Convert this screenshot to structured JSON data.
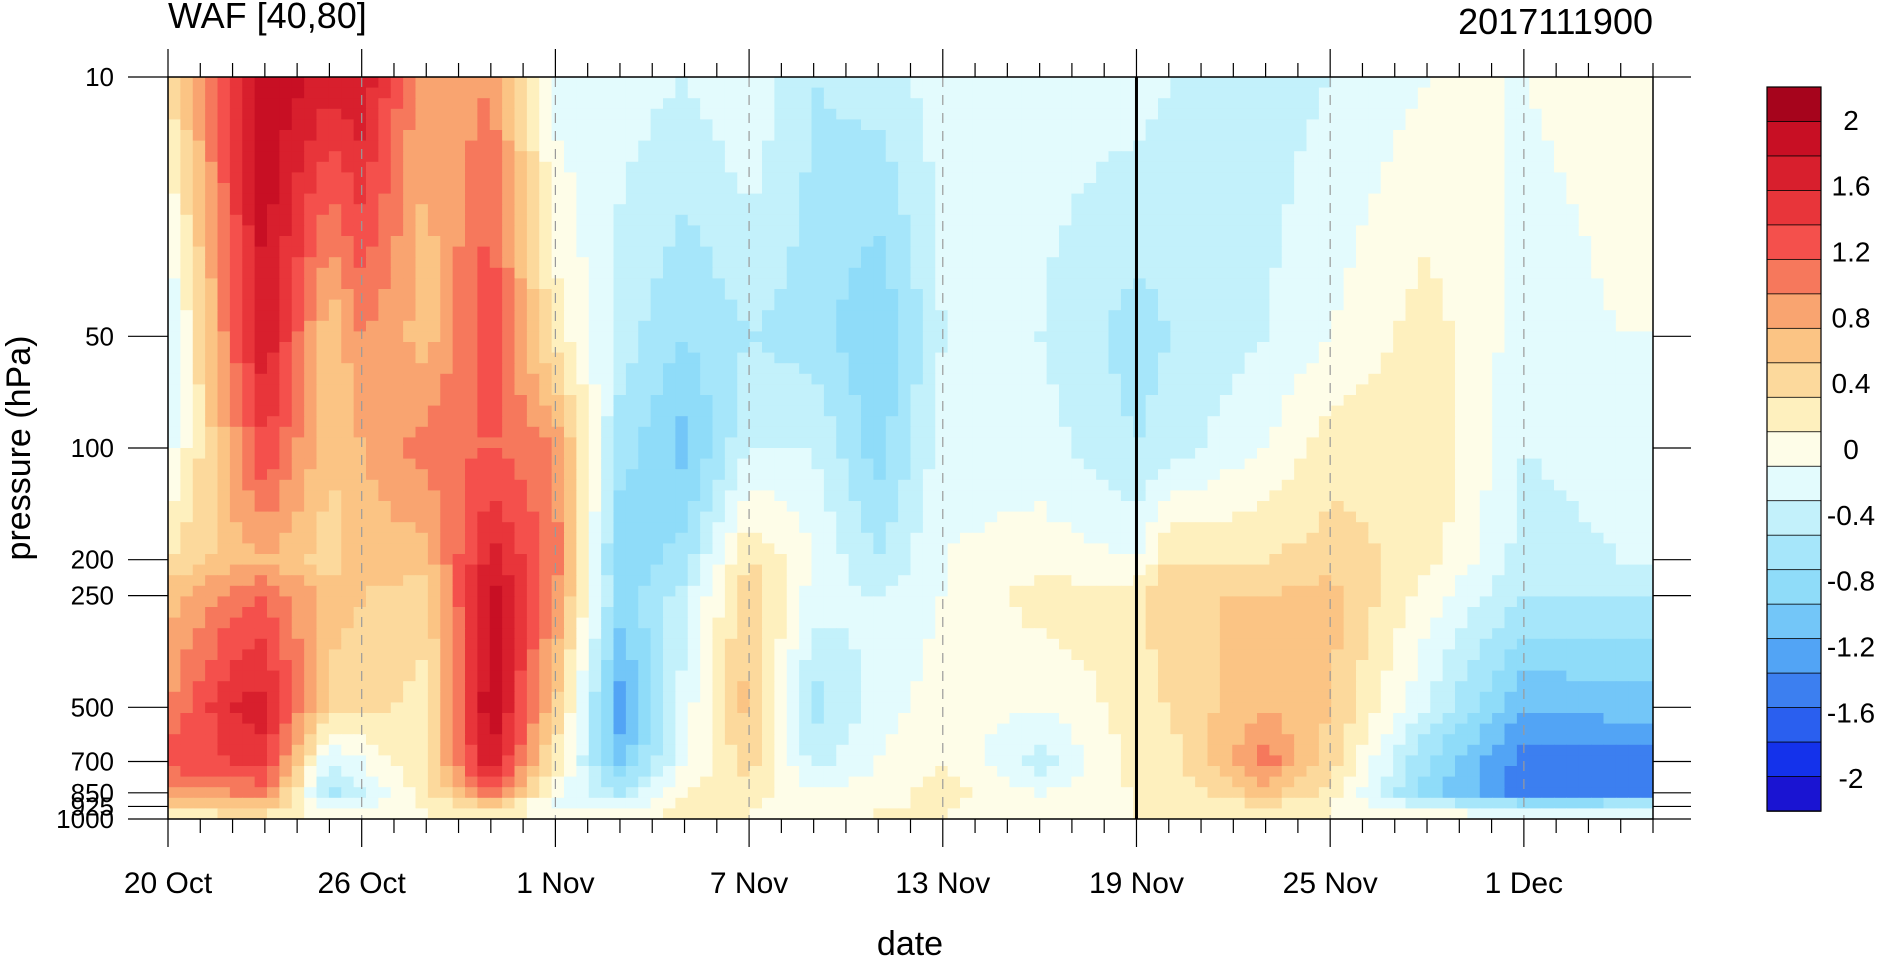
{
  "chart_data": {
    "type": "heatmap",
    "title_left": "WAF [40,80]",
    "title_right": "2017111900",
    "xlabel": "date",
    "ylabel": "pressure (hPa)",
    "x_tick_labels": [
      "20 Oct",
      "26 Oct",
      "1 Nov",
      "7 Nov",
      "13 Nov",
      "19 Nov",
      "25 Nov",
      "1 Dec"
    ],
    "y_tick_labels": [
      "10",
      "50",
      "100",
      "200",
      "250",
      "500",
      "700",
      "850",
      "925",
      "1000"
    ],
    "y_scale": "log",
    "x_range": [
      "2017-10-20",
      "2017-12-05"
    ],
    "y_range": [
      1000,
      10
    ],
    "levels": [
      -2.2,
      -2.0,
      -1.8,
      -1.6,
      -1.4,
      -1.2,
      -1.0,
      -0.8,
      -0.6,
      -0.4,
      -0.2,
      0.0,
      0.2,
      0.4,
      0.6,
      0.8,
      1.0,
      1.2,
      1.4,
      1.6,
      1.8,
      2.0,
      2.2
    ],
    "colorbar_labels": [
      "2",
      "1.6",
      "1.2",
      "0.8",
      "0.4",
      "0",
      "-0.4",
      "-0.8",
      "-1.2",
      "-1.6",
      "-2"
    ],
    "colors": [
      "#1a14d2",
      "#1432eb",
      "#2a5fef",
      "#3c7ff0",
      "#52a4f5",
      "#73c6f8",
      "#8fdcf9",
      "#a6e6fa",
      "#c3f1fb",
      "#e3fbfd",
      "#fefde8",
      "#fef0be",
      "#fcd99c",
      "#fbc484",
      "#f9a470",
      "#f6785c",
      "#f4504c",
      "#e8353a",
      "#d81f2d",
      "#c80f24",
      "#a6041c"
    ],
    "analysis_date_marker": "19 Nov",
    "dashed_gridlines": true,
    "colorbar_position": "right",
    "profiles": [
      {
        "date": "20 Oct",
        "values": [
          0.2,
          -0.5,
          -0.3,
          0.2,
          0.5,
          0.8,
          1.1,
          0.7,
          0.3,
          0.0
        ]
      },
      {
        "date": "22 Oct",
        "values": [
          1.3,
          1.0,
          0.7,
          0.5,
          0.9,
          1.4,
          1.2,
          0.8,
          0.4,
          0.1
        ]
      },
      {
        "date": "23 Oct",
        "values": [
          1.8,
          1.6,
          1.2,
          0.6,
          1.0,
          1.5,
          1.3,
          0.9,
          0.4,
          0.1
        ]
      },
      {
        "date": "25 Oct",
        "values": [
          1.5,
          0.4,
          0.4,
          0.3,
          0.5,
          0.3,
          -0.4,
          -0.7,
          -0.3,
          0.0
        ]
      },
      {
        "date": "26 Oct",
        "values": [
          1.6,
          0.8,
          0.6,
          0.5,
          0.4,
          0.3,
          -0.2,
          -0.4,
          -0.2,
          0.0
        ]
      },
      {
        "date": "28 Oct",
        "values": [
          0.6,
          0.5,
          0.9,
          0.5,
          0.3,
          0.1,
          0.2,
          0.1,
          0.0,
          0.0
        ]
      },
      {
        "date": "30 Oct",
        "values": [
          0.8,
          1.2,
          1.0,
          1.5,
          1.7,
          1.8,
          1.6,
          1.0,
          0.3,
          0.0
        ]
      },
      {
        "date": "1 Nov",
        "values": [
          -0.3,
          0.1,
          0.8,
          0.9,
          0.8,
          0.4,
          0.1,
          -0.1,
          -0.3,
          0.0
        ]
      },
      {
        "date": "3 Nov",
        "values": [
          -0.3,
          -0.5,
          -0.7,
          -1.0,
          -0.9,
          -1.3,
          -1.1,
          -0.6,
          -0.3,
          0.0
        ]
      },
      {
        "date": "5 Nov",
        "values": [
          -0.4,
          -0.8,
          -1.1,
          -0.7,
          -0.5,
          -0.3,
          -0.2,
          0.0,
          0.1,
          0.0
        ]
      },
      {
        "date": "7 Nov",
        "values": [
          -0.2,
          -0.6,
          -0.4,
          0.2,
          0.4,
          0.5,
          0.3,
          0.1,
          0.0,
          0.0
        ]
      },
      {
        "date": "9 Nov",
        "values": [
          -0.6,
          -0.7,
          -0.4,
          -0.2,
          -0.3,
          -0.7,
          -0.5,
          -0.2,
          -0.1,
          0.0
        ]
      },
      {
        "date": "11 Nov",
        "values": [
          -0.5,
          -1.0,
          -0.9,
          -0.6,
          -0.4,
          -0.3,
          -0.2,
          -0.1,
          0.0,
          0.0
        ]
      },
      {
        "date": "13 Nov",
        "values": [
          -0.3,
          -0.4,
          -0.3,
          -0.2,
          -0.2,
          -0.1,
          0.0,
          0.1,
          0.0,
          0.0
        ]
      },
      {
        "date": "16 Nov",
        "values": [
          -0.3,
          -0.4,
          -0.3,
          -0.1,
          0.1,
          -0.2,
          -0.5,
          -0.2,
          -0.1,
          0.0
        ]
      },
      {
        "date": "19 Nov",
        "values": [
          -0.3,
          -0.7,
          -0.6,
          -0.2,
          0.1,
          0.1,
          0.1,
          0.0,
          0.0,
          0.0
        ]
      },
      {
        "date": "20 Nov",
        "values": [
          -0.4,
          -0.6,
          -0.5,
          0.2,
          0.4,
          0.2,
          0.1,
          0.0,
          0.0,
          0.0
        ]
      },
      {
        "date": "23 Nov",
        "values": [
          -0.5,
          -0.4,
          -0.2,
          0.2,
          0.4,
          0.6,
          0.9,
          0.5,
          0.2,
          0.0
        ]
      },
      {
        "date": "25 Nov",
        "values": [
          -0.4,
          -0.2,
          0.1,
          0.3,
          0.5,
          0.4,
          0.3,
          0.1,
          0.0,
          0.0
        ]
      },
      {
        "date": "28 Nov",
        "values": [
          -0.2,
          0.1,
          0.2,
          0.1,
          -0.1,
          -0.4,
          -0.8,
          -0.9,
          -0.4,
          0.0
        ]
      },
      {
        "date": "1 Dec",
        "values": [
          -0.2,
          -0.3,
          -0.4,
          -0.5,
          -0.6,
          -1.2,
          -1.5,
          -1.5,
          -0.6,
          0.0
        ]
      },
      {
        "date": "4 Dec",
        "values": [
          -0.1,
          -0.2,
          -0.3,
          -0.4,
          -0.6,
          -1.1,
          -1.5,
          -1.4,
          -0.6,
          0.0
        ]
      }
    ]
  }
}
